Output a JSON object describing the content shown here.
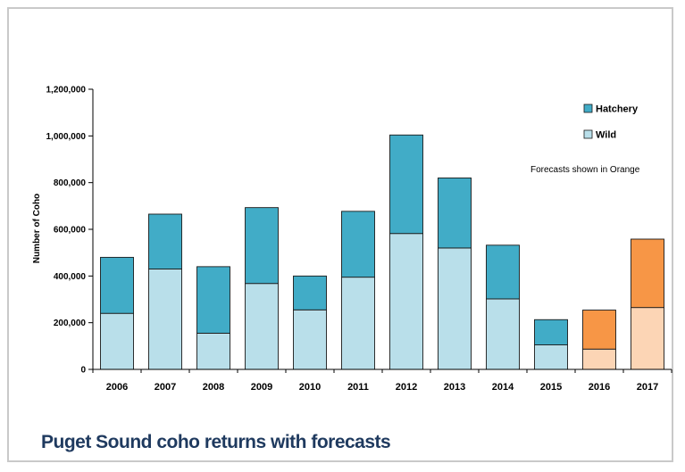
{
  "caption": "Puget Sound coho returns with forecasts",
  "colors": {
    "hatchery": "#41acc7",
    "wild": "#b9dfea",
    "hatchery_forecast": "#f79646",
    "wild_forecast": "#fcd5b5",
    "bar_outline": "#1a1a1a",
    "caption": "#1f3a5f"
  },
  "chart_data": {
    "type": "bar",
    "stacked": true,
    "categories": [
      "2006",
      "2007",
      "2008",
      "2009",
      "2010",
      "2011",
      "2012",
      "2013",
      "2014",
      "2015",
      "2016",
      "2017"
    ],
    "series": [
      {
        "name": "Wild",
        "values": [
          240000,
          430000,
          155000,
          368000,
          255000,
          395000,
          582000,
          520000,
          302000,
          105000,
          87000,
          265000
        ]
      },
      {
        "name": "Hatchery",
        "values": [
          240000,
          235000,
          285000,
          325000,
          145000,
          282000,
          422000,
          300000,
          230000,
          108000,
          167000,
          293000
        ]
      }
    ],
    "forecast_categories": [
      "2016",
      "2017"
    ],
    "ylabel": "Number of Coho",
    "xlabel": "",
    "ylim": [
      0,
      1200000
    ],
    "yticks": [
      0,
      200000,
      400000,
      600000,
      800000,
      1000000,
      1200000
    ],
    "ytick_labels": [
      "0",
      "200,000",
      "400,000",
      "600,000",
      "800,000",
      "1,000,000",
      "1,200,000"
    ],
    "legend": {
      "position": "top-right",
      "entries": [
        "Hatchery",
        "Wild"
      ]
    },
    "annotation": "Forecasts shown in Orange",
    "grid": false
  }
}
